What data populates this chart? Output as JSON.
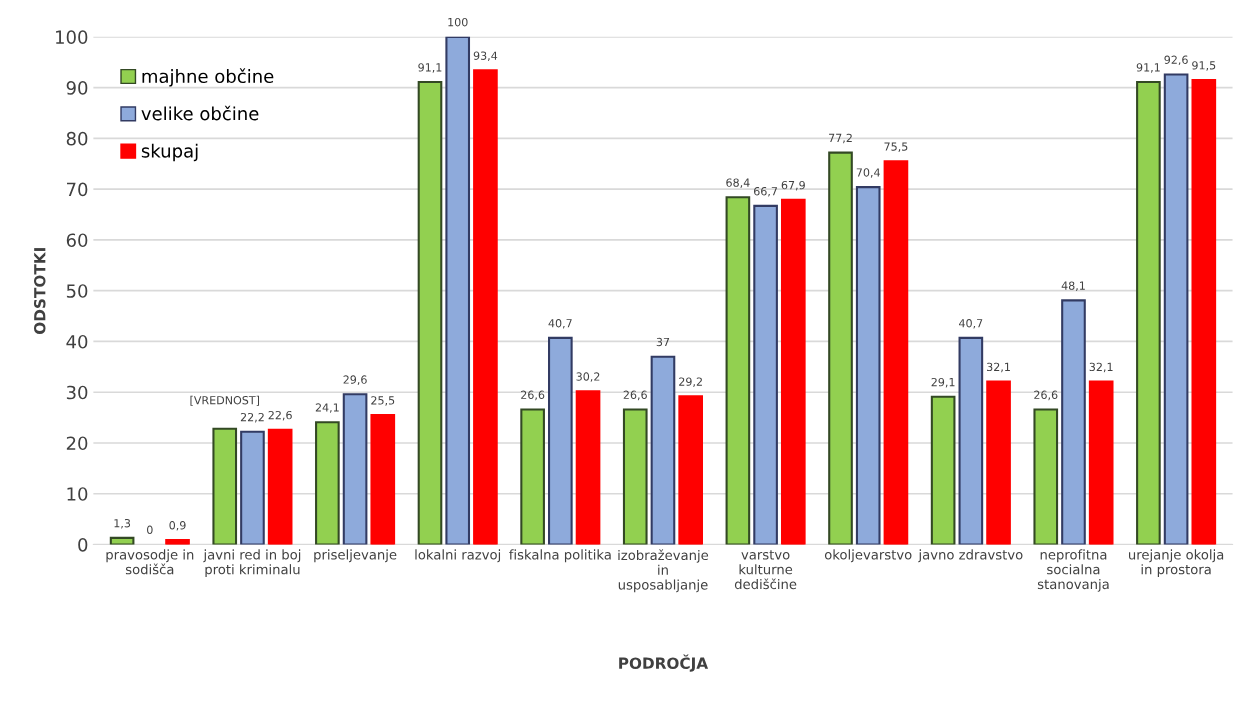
{
  "chart_data": {
    "type": "bar",
    "xlabel": "PODROČJA",
    "ylabel": "ODSTOTKI",
    "categories": [
      "pravosodje in\nsodišča",
      "javni red in boj\nproti kriminalu",
      "priseljevanje",
      "lokalni razvoj",
      "fiskalna politika",
      "izobraževanje\nin\nusposabljanje",
      "varstvo\nkulturne\ndediščine",
      "okoljevarstvo",
      "javno zdravstvo",
      "neprofitna\nsocialna\nstanovanja",
      "urejanje okolja\nin prostora"
    ],
    "series": [
      {
        "name": "majhne občine",
        "color": "#92d050",
        "values": [
          1.3,
          22.8,
          24.1,
          91.1,
          26.6,
          26.6,
          68.4,
          77.2,
          29.1,
          26.6,
          91.1
        ],
        "value_labels": [
          "1,3",
          "[VREDNOST]",
          "24,1",
          "91,1",
          "26,6",
          "26,6",
          "68,4",
          "77,2",
          "29,1",
          "26,6",
          "91,1"
        ]
      },
      {
        "name": "velike občine",
        "color": "#8eaadb",
        "values": [
          0,
          22.2,
          29.6,
          100,
          40.7,
          37,
          66.7,
          70.4,
          40.7,
          48.1,
          92.6
        ],
        "value_labels": [
          "0",
          "22,2",
          "29,6",
          "100",
          "40,7",
          "37",
          "66,7",
          "70,4",
          "40,7",
          "48,1",
          "92,6"
        ]
      },
      {
        "name": "skupaj",
        "color": "#ff0000",
        "values": [
          0.9,
          22.6,
          25.5,
          93.4,
          30.2,
          29.2,
          67.9,
          75.5,
          32.1,
          32.1,
          91.5
        ],
        "value_labels": [
          "0,9",
          "22,6",
          "25,5",
          "93,4",
          "30,2",
          "29,2",
          "67,9",
          "75,5",
          "32,1",
          "32,1",
          "91,5"
        ]
      }
    ],
    "ylim": [
      0,
      100
    ],
    "yticks": [
      0,
      10,
      20,
      30,
      40,
      50,
      60,
      70,
      80,
      90,
      100
    ],
    "grid": "y",
    "legend": "top left"
  }
}
